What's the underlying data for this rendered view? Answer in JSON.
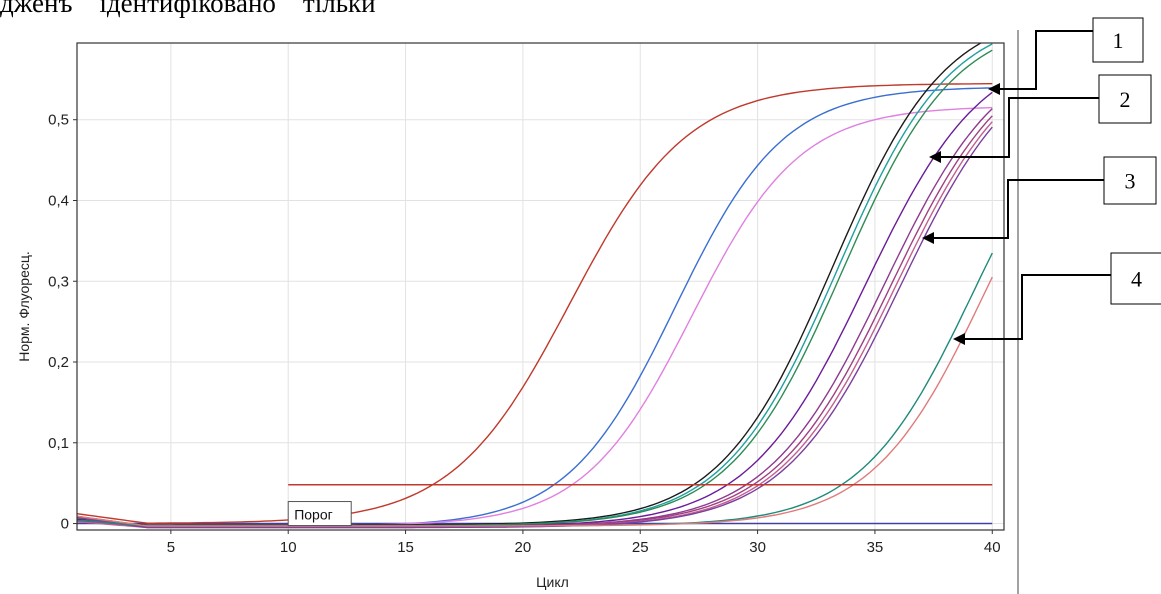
{
  "doc_text": "дженъ    ідентифіковано    тільки",
  "chart_data": {
    "type": "line",
    "xlabel": "Цикл",
    "ylabel": "Норм. Флуоресц.",
    "xlim": [
      1,
      40.5
    ],
    "ylim": [
      -0.008,
      0.595
    ],
    "x_ticks": [
      5,
      10,
      15,
      20,
      25,
      30,
      35,
      40
    ],
    "y_ticks": [
      0,
      0.1,
      0.2,
      0.3,
      0.4,
      0.5
    ],
    "x_tick_labels": [
      "5",
      "10",
      "15",
      "20",
      "25",
      "30",
      "35",
      "40"
    ],
    "y_tick_labels": [
      "0",
      "0,1",
      "0,2",
      "0,3",
      "0,4",
      "0,5"
    ],
    "grid": true,
    "threshold": {
      "value": 0.048,
      "x_start": 10,
      "x_end": 40,
      "label": "Порог",
      "color": "#c0392b"
    },
    "baseline": {
      "value": 0.0,
      "color": "#4040a0"
    },
    "series": [
      {
        "color": "#c0392b",
        "ct": 22.0,
        "plateau": 0.545,
        "slope": 2.5,
        "start": 0.0
      },
      {
        "color": "#3a6fd0",
        "ct": 26.5,
        "plateau": 0.545,
        "slope": 2.3,
        "start": -0.004
      },
      {
        "color": "#e080e0",
        "ct": 27.2,
        "plateau": 0.52,
        "slope": 2.3,
        "start": -0.003
      },
      {
        "color": "#1a1a1a",
        "ct": 33.2,
        "plateau": 0.64,
        "slope": 2.4,
        "start": -0.002
      },
      {
        "color": "#20a0a0",
        "ct": 33.4,
        "plateau": 0.635,
        "slope": 2.4,
        "start": -0.003
      },
      {
        "color": "#2e8b57",
        "ct": 33.6,
        "plateau": 0.63,
        "slope": 2.4,
        "start": -0.003
      },
      {
        "color": "#6a1b9a",
        "ct": 34.6,
        "plateau": 0.6,
        "slope": 2.5,
        "start": -0.004
      },
      {
        "color": "#8e3a8e",
        "ct": 35.4,
        "plateau": 0.6,
        "slope": 2.5,
        "start": -0.004
      },
      {
        "color": "#a04080",
        "ct": 35.7,
        "plateau": 0.6,
        "slope": 2.5,
        "start": -0.004
      },
      {
        "color": "#c06090",
        "ct": 35.9,
        "plateau": 0.6,
        "slope": 2.5,
        "start": -0.005
      },
      {
        "color": "#7b3f9f",
        "ct": 36.1,
        "plateau": 0.6,
        "slope": 2.5,
        "start": -0.005
      },
      {
        "color": "#1e8a7a",
        "ct": 39.2,
        "plateau": 0.58,
        "slope": 2.4,
        "start": -0.003
      },
      {
        "color": "#e07b7b",
        "ct": 39.7,
        "plateau": 0.58,
        "slope": 2.4,
        "start": -0.003
      }
    ]
  },
  "callouts": [
    {
      "label": "1",
      "target_x": 40,
      "target_y": 0.54
    },
    {
      "label": "2",
      "target_x": 37.5,
      "target_y": 0.455
    },
    {
      "label": "3",
      "target_x": 37.0,
      "target_y": 0.355
    },
    {
      "label": "4",
      "target_x": 38.5,
      "target_y": 0.225
    }
  ]
}
